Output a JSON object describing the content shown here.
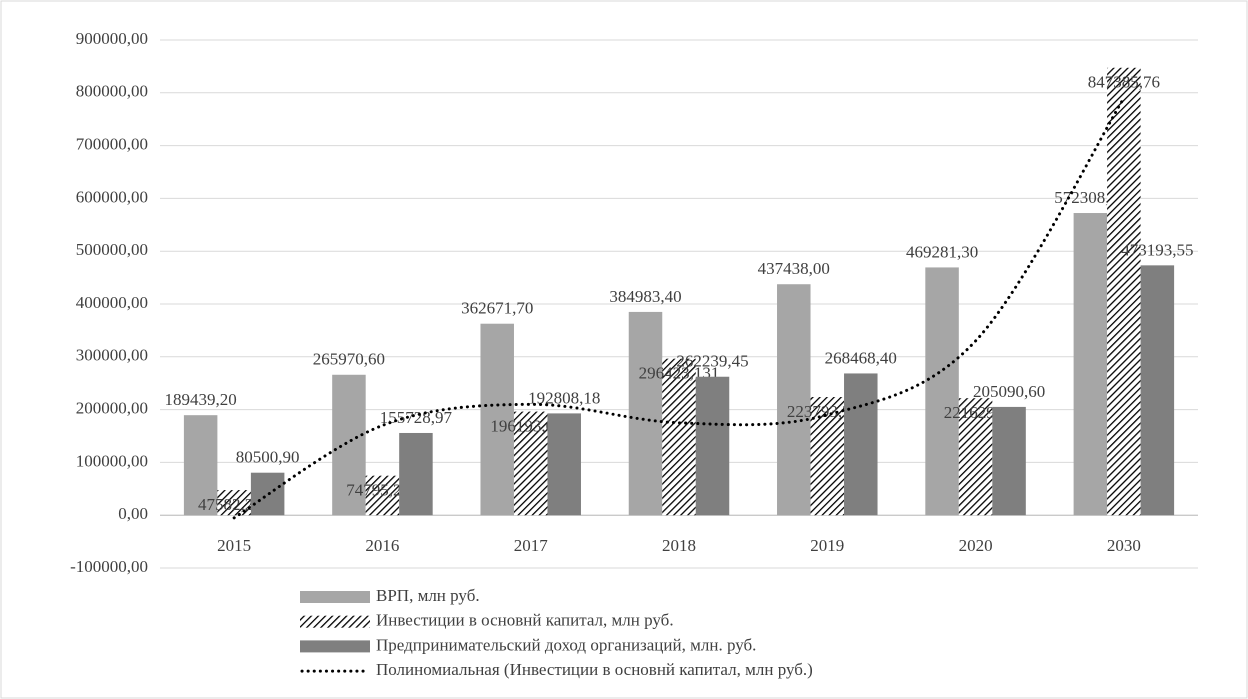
{
  "chart_data": {
    "type": "bar",
    "categories": [
      "2015",
      "2016",
      "2017",
      "2018",
      "2019",
      "2020",
      "2030"
    ],
    "series": [
      {
        "name": "ВРП, млн руб.",
        "color": "#a6a6a6",
        "pattern": "solid",
        "values": [
          189439.2,
          265970.6,
          362671.7,
          384983.4,
          437438.0,
          469281.3,
          572308.23
        ],
        "value_labels": [
          "189439,20",
          "265970,60",
          "362671,70",
          "384983,40",
          "437438,00",
          "469281,30",
          "572308,23"
        ]
      },
      {
        "name": "Инвестиции в основнй капитал, млн руб.",
        "color": "#000000",
        "pattern": "hatch",
        "values": [
          47582.272,
          74795.277,
          196193.021,
          296423.131,
          223793.252,
          221629.8,
          847385.76
        ],
        "value_labels": [
          "47582,272",
          "74795,277",
          "196193,021",
          "296423,131",
          "223793,252",
          "221629,8",
          "847385,76"
        ]
      },
      {
        "name": "Предпринимательский доход организаций, млн. руб.",
        "color": "#7f7f7f",
        "pattern": "solid",
        "values": [
          80500.9,
          155728.97,
          192808.18,
          262239.45,
          268468.4,
          205090.6,
          473193.55
        ],
        "value_labels": [
          "80500,90",
          "155728,97",
          "192808,18",
          "262239,45",
          "268468,40",
          "205090,60",
          "473193,55"
        ]
      },
      {
        "name": "Полиномиальная (Инвестиции в основнй капитал, млн руб.)",
        "color": "#000000",
        "type": "line",
        "dash": "dotted",
        "values": [
          -5000,
          170000,
          210000,
          175000,
          190000,
          330000,
          790000
        ]
      }
    ],
    "ylim": [
      -100000,
      900000
    ],
    "yticks": [
      {
        "value": -100000,
        "label": "-100000,00"
      },
      {
        "value": 0,
        "label": "0,00"
      },
      {
        "value": 100000,
        "label": "100000,00"
      },
      {
        "value": 200000,
        "label": "200000,00"
      },
      {
        "value": 300000,
        "label": "300000,00"
      },
      {
        "value": 400000,
        "label": "400000,00"
      },
      {
        "value": 500000,
        "label": "500000,00"
      },
      {
        "value": 600000,
        "label": "600000,00"
      },
      {
        "value": 700000,
        "label": "700000,00"
      },
      {
        "value": 800000,
        "label": "800000,00"
      },
      {
        "value": 900000,
        "label": "900000,00"
      }
    ],
    "grid": true,
    "legend": "bottom"
  }
}
